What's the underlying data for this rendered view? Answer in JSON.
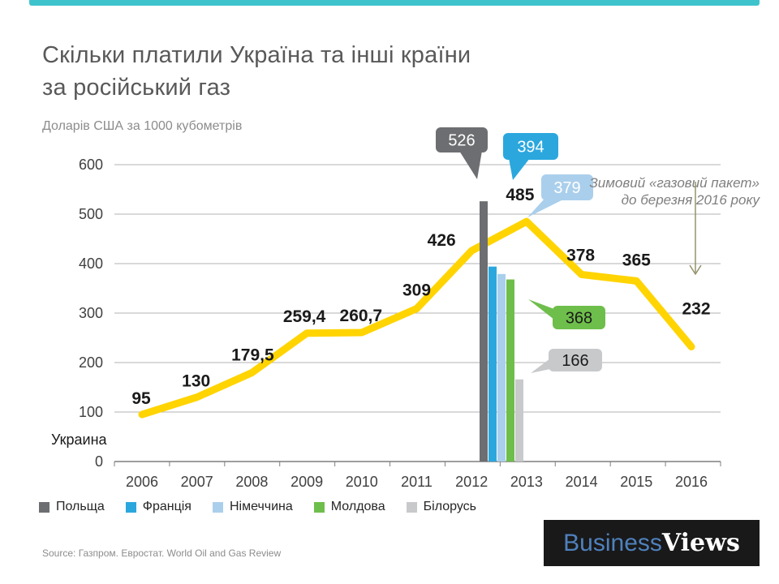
{
  "header": {
    "title_line1": "Скільки платили Україна та інші країни",
    "title_line2": "за російський газ",
    "subtitle": "Доларів США за 1000 кубометрів"
  },
  "accent_bar_color": "#3EC3CD",
  "chart_data": {
    "type": "line+bar",
    "title": "Скільки платили Україна та інші країни за російський газ",
    "units": "Доларів США за 1000 кубометрів",
    "categories": [
      "2006",
      "2007",
      "2008",
      "2009",
      "2010",
      "2011",
      "2012",
      "2013",
      "2014",
      "2015",
      "2016"
    ],
    "line_series": {
      "name": "Украина",
      "color": "#FFD400",
      "values": [
        95,
        130,
        179.5,
        259.4,
        260.7,
        309,
        426,
        485,
        378,
        365,
        232
      ],
      "labels": [
        "95",
        "130",
        "179,5",
        "259,4",
        "260,7",
        "309",
        "426",
        "485",
        "378",
        "365",
        "232"
      ]
    },
    "bar_series": [
      {
        "name": "Польща",
        "value": 526,
        "callout": "526",
        "color": "#6D6E71",
        "callout_text_color": "#FFFFFF"
      },
      {
        "name": "Франція",
        "value": 394,
        "callout": "394",
        "color": "#2BA7DE",
        "callout_text_color": "#FFFFFF"
      },
      {
        "name": "Німеччина",
        "value": 379,
        "callout": "379",
        "color": "#AACFEC",
        "callout_text_color": "#FFFFFF"
      },
      {
        "name": "Молдова",
        "value": 368,
        "callout": "368",
        "color": "#6EBE4B",
        "callout_text_color": "#1A1A1A"
      },
      {
        "name": "Білорусь",
        "value": 166,
        "callout": "166",
        "color": "#C8C9CB",
        "callout_text_color": "#1A1A1A"
      }
    ],
    "ylim": [
      0,
      600
    ],
    "yticks": [
      "0",
      "100",
      "200",
      "300",
      "400",
      "500",
      "600"
    ],
    "grid": true,
    "line_axis_label": "Украина",
    "annotation": {
      "line1": "Зимовий «газовий пакет»",
      "line2": "до березня 2016 року",
      "color": "#7F7F7F",
      "arrow_color": "#8D8C62"
    },
    "legend_position": "bottom-left"
  },
  "footer": {
    "source": "Source: Газпром. Евростат. World Oil and Gas Review"
  },
  "logo": {
    "part1": "Business",
    "part2": "Views"
  }
}
